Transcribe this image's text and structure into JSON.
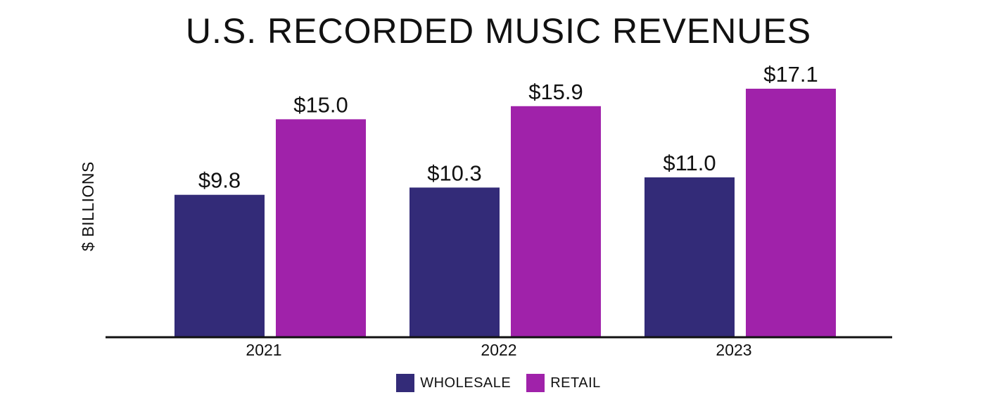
{
  "chart_data": {
    "type": "bar",
    "title": "U.S. RECORDED MUSIC REVENUES",
    "ylabel": "$ BILLIONS",
    "xlabel": "",
    "categories": [
      "2021",
      "2022",
      "2023"
    ],
    "series": [
      {
        "name": "WHOLESALE",
        "color": "#332b78",
        "values": [
          9.8,
          10.3,
          11.0
        ],
        "labels": [
          "$9.8",
          "$10.3",
          "$11.0"
        ]
      },
      {
        "name": "RETAIL",
        "color": "#a022aa",
        "values": [
          15.0,
          15.9,
          17.1
        ],
        "labels": [
          "$15.0",
          "$15.9",
          "$17.1"
        ]
      }
    ],
    "ylim": [
      0,
      17.1
    ],
    "grid": false,
    "legend_position": "bottom-center"
  }
}
